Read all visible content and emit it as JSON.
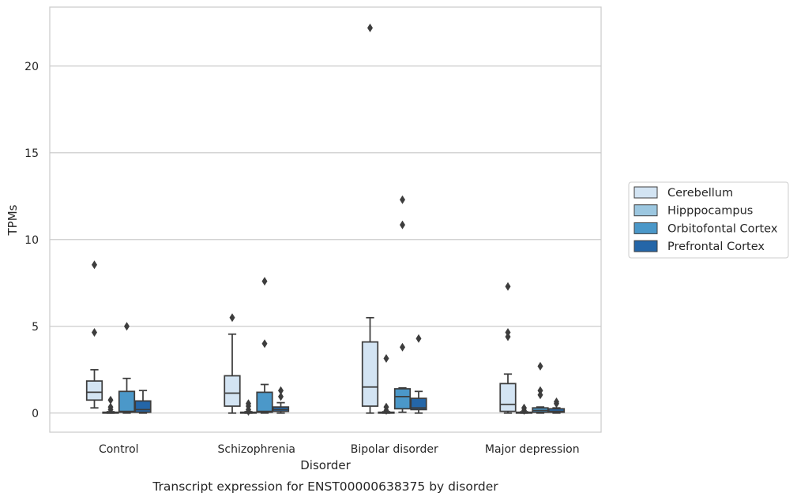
{
  "chart_data": {
    "type": "box",
    "title": "",
    "caption": "Transcript expression for ENST00000638375 by disorder",
    "xlabel": "Disorder",
    "ylabel": "TPMs",
    "ylim": [
      -1.1,
      23.4
    ],
    "yticks": [
      0,
      5,
      10,
      15,
      20
    ],
    "grid": "horizontal",
    "legend_position": "right",
    "categories": [
      "Control",
      "Schizophrenia",
      "Bipolar disorder",
      "Major depression"
    ],
    "series": [
      {
        "name": "Cerebellum",
        "color": "#d3e4f3",
        "boxes": [
          {
            "whislo": 0.3,
            "q1": 0.75,
            "med": 1.2,
            "q3": 1.85,
            "whishi": 2.5,
            "fliers": [
              4.65,
              8.55
            ]
          },
          {
            "whislo": 0.0,
            "q1": 0.4,
            "med": 1.15,
            "q3": 2.15,
            "whishi": 4.55,
            "fliers": [
              5.5
            ]
          },
          {
            "whislo": 0.0,
            "q1": 0.4,
            "med": 1.5,
            "q3": 4.1,
            "whishi": 5.5,
            "fliers": [
              22.2
            ]
          },
          {
            "whislo": 0.0,
            "q1": 0.1,
            "med": 0.5,
            "q3": 1.7,
            "whishi": 2.25,
            "fliers": [
              4.4,
              4.65,
              7.3
            ]
          }
        ]
      },
      {
        "name": "Hipppocampus",
        "color": "#9cc7e0",
        "boxes": [
          {
            "whislo": 0.0,
            "q1": 0.0,
            "med": 0.02,
            "q3": 0.05,
            "whishi": 0.08,
            "fliers": [
              0.2,
              0.35,
              0.75
            ]
          },
          {
            "whislo": 0.0,
            "q1": 0.0,
            "med": 0.02,
            "q3": 0.05,
            "whishi": 0.08,
            "fliers": [
              0.1,
              0.2,
              0.4,
              0.55
            ]
          },
          {
            "whislo": 0.0,
            "q1": 0.0,
            "med": 0.02,
            "q3": 0.05,
            "whishi": 0.08,
            "fliers": [
              0.15,
              0.35,
              3.15
            ]
          },
          {
            "whislo": 0.0,
            "q1": 0.0,
            "med": 0.02,
            "q3": 0.05,
            "whishi": 0.08,
            "fliers": [
              0.15,
              0.3
            ]
          }
        ]
      },
      {
        "name": "Orbitofontal Cortex",
        "color": "#4b98c9",
        "boxes": [
          {
            "whislo": 0.0,
            "q1": 0.05,
            "med": 0.1,
            "q3": 1.25,
            "whishi": 2.0,
            "fliers": [
              5.0
            ]
          },
          {
            "whislo": 0.0,
            "q1": 0.05,
            "med": 0.1,
            "q3": 1.2,
            "whishi": 1.65,
            "fliers": [
              4.0,
              7.6
            ]
          },
          {
            "whislo": 0.05,
            "q1": 0.25,
            "med": 0.95,
            "q3": 1.4,
            "whishi": 1.45,
            "fliers": [
              3.8,
              10.85,
              12.3
            ]
          },
          {
            "whislo": 0.0,
            "q1": 0.05,
            "med": 0.15,
            "q3": 0.3,
            "whishi": 0.35,
            "fliers": [
              1.05,
              1.3,
              2.7
            ]
          }
        ]
      },
      {
        "name": "Prefrontal Cortex",
        "color": "#2466a8",
        "boxes": [
          {
            "whislo": 0.0,
            "q1": 0.05,
            "med": 0.2,
            "q3": 0.7,
            "whishi": 1.3,
            "fliers": []
          },
          {
            "whislo": 0.0,
            "q1": 0.1,
            "med": 0.2,
            "q3": 0.35,
            "whishi": 0.6,
            "fliers": [
              0.95,
              1.3
            ]
          },
          {
            "whislo": 0.0,
            "q1": 0.2,
            "med": 0.3,
            "q3": 0.85,
            "whishi": 1.25,
            "fliers": [
              4.3
            ]
          },
          {
            "whislo": 0.0,
            "q1": 0.05,
            "med": 0.1,
            "q3": 0.25,
            "whishi": 0.3,
            "fliers": [
              0.55,
              0.65
            ]
          }
        ]
      }
    ]
  }
}
